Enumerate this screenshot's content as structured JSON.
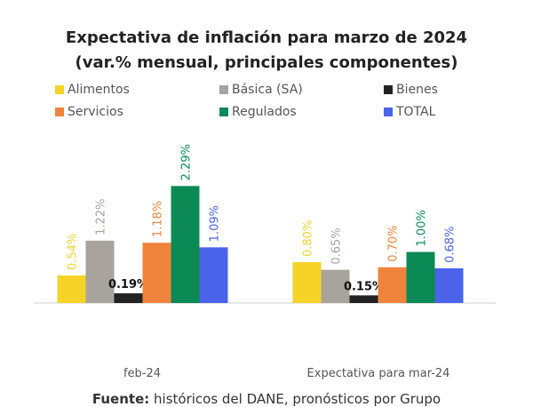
{
  "chart_data": {
    "type": "bar",
    "title": "Expectativa de inflación para marzo de 2024",
    "subtitle": "(var.% mensual, principales componentes)",
    "categories": [
      "feb-24",
      "Expectativa para mar-24"
    ],
    "series": [
      {
        "name": "Alimentos",
        "color": "#f5d327",
        "values": [
          0.54,
          0.8
        ],
        "labels": [
          "0.54%",
          "0.80%"
        ]
      },
      {
        "name": "Básica (SA)",
        "color": "#a8a39d",
        "values": [
          1.22,
          0.65
        ],
        "labels": [
          "1.22%",
          "0.65%"
        ]
      },
      {
        "name": "Bienes",
        "color": "#222222",
        "values": [
          0.19,
          0.15
        ],
        "labels": [
          "0.19%",
          "0.15%"
        ]
      },
      {
        "name": "Servicios",
        "color": "#f0843c",
        "values": [
          1.18,
          0.7
        ],
        "labels": [
          "1.18%",
          "0.70%"
        ]
      },
      {
        "name": "Regulados",
        "color": "#0c8a55",
        "values": [
          2.29,
          1.0
        ],
        "labels": [
          "2.29%",
          "1.00%"
        ]
      },
      {
        "name": "TOTAL",
        "color": "#4a63e8",
        "values": [
          1.09,
          0.68
        ],
        "labels": [
          "1.09%",
          "0.68%"
        ]
      }
    ],
    "legend": "top",
    "grid": false
  },
  "source": {
    "bold": "Fuente:",
    "text": " históricos del DANE, pronósticos por Grupo"
  }
}
